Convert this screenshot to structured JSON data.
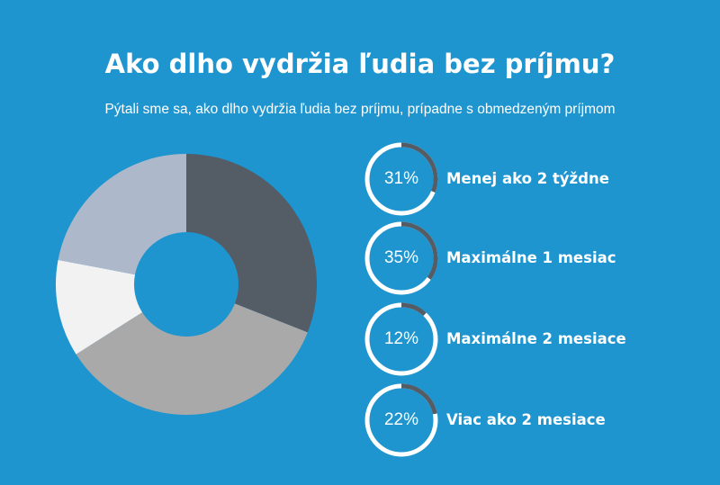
{
  "chart_data": {
    "type": "pie",
    "title": "Ako dlho vydržia ľudia bez príjmu?",
    "subtitle": "Pýtali sme sa, ako dlho vydržia ľudia bez príjmu, prípadne s obmedzeným príjmom",
    "categories": [
      "Menej ako 2 týždne",
      "Maximálne 1 mesiac",
      "Maximálne 2 mesiace",
      "Viac ako 2 mesiace"
    ],
    "values": [
      31,
      35,
      12,
      22
    ],
    "value_labels": [
      "31%",
      "35%",
      "12%",
      "22%"
    ],
    "colors": [
      "#545c66",
      "#a9a9a9",
      "#f2f2f2",
      "#adb9ca"
    ],
    "style": "donut"
  },
  "legend_ring": {
    "track_color": "#ffffff",
    "fill_color": "#545c66"
  },
  "background": "#1e95cf"
}
